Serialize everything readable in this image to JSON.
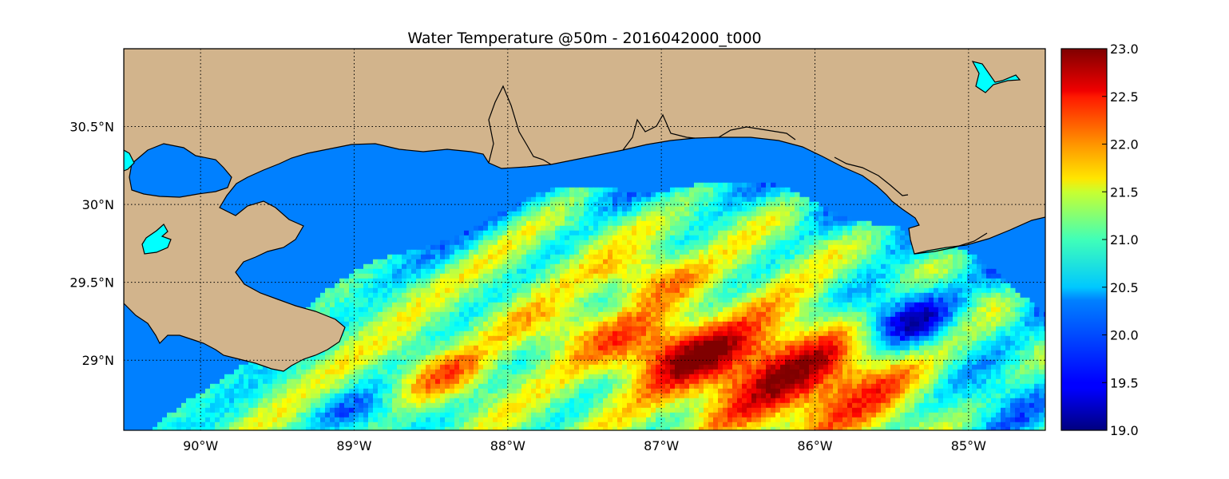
{
  "title": "Water Temperature @50m - 2016042000_t000",
  "colors": {
    "land": "#d2b48c",
    "water_masked": "#0080ff",
    "lake": "#00ffff",
    "frame": "#000000"
  },
  "map": {
    "type": "heatmap",
    "lon_range": [
      -90.5,
      -84.5
    ],
    "lat_range": [
      28.55,
      31.0
    ],
    "grid": true,
    "lon_ticks": [
      {
        "value": -90,
        "label": "90°W"
      },
      {
        "value": -89,
        "label": "89°W"
      },
      {
        "value": -88,
        "label": "88°W"
      },
      {
        "value": -87,
        "label": "87°W"
      },
      {
        "value": -86,
        "label": "86°W"
      },
      {
        "value": -85,
        "label": "85°W"
      }
    ],
    "lat_ticks": [
      {
        "value": 30.5,
        "label": "30.5°N"
      },
      {
        "value": 30.0,
        "label": "30°N"
      },
      {
        "value": 29.5,
        "label": "29.5°N"
      },
      {
        "value": 29.0,
        "label": "29°N"
      }
    ]
  },
  "colorbar": {
    "colormap": "jet",
    "range": [
      19.0,
      23.0
    ],
    "ticks": [
      "19.0",
      "19.5",
      "20.0",
      "20.5",
      "21.0",
      "21.5",
      "22.0",
      "22.5",
      "23.0"
    ]
  }
}
